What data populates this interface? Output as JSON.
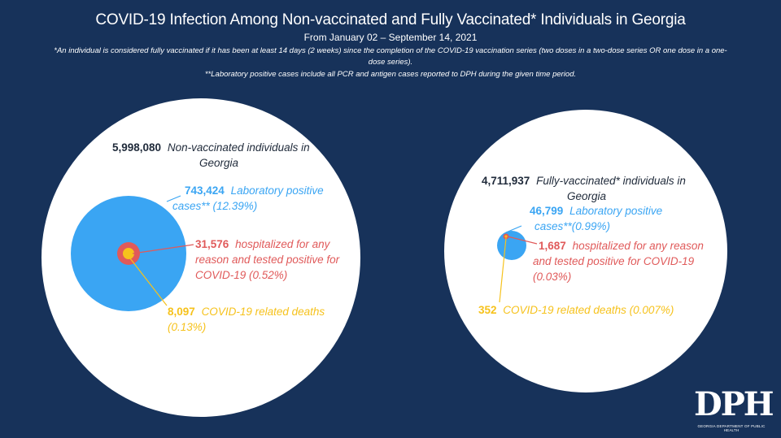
{
  "header": {
    "title": "COVID-19 Infection Among Non-vaccinated and Fully Vaccinated* Individuals in Georgia",
    "subtitle": "From January 02 – September 14, 2021",
    "note_vaccinated": "*An individual is considered fully vaccinated if it has been at least 14 days (2 weeks) since the completion of the COVID-19 vaccination series (two doses in a two-dose series OR one dose in a one-dose series).",
    "note_lab": "**Laboratory positive cases include all PCR and antigen cases reported to DPH during the given time period."
  },
  "colors": {
    "background": "#17325a",
    "population": "#ffffff",
    "lab_positive": "#3aa5f3",
    "hospitalized": "#e05a5a",
    "deaths": "#f6c21c",
    "population_text": "#1f2a3a"
  },
  "chart_data": {
    "type": "nested-circles",
    "groups": [
      {
        "population": {
          "value": "5,998,080",
          "label": "Non-vaccinated individuals in Georgia",
          "line1": "Non-vaccinated individuals in",
          "line2": "Georgia"
        },
        "lab_positive": {
          "value": "743,424",
          "line1": "Laboratory positive",
          "line2": "cases** (12.39%)"
        },
        "hospitalized": {
          "value": "31,576",
          "line1": "hospitalized for any",
          "line2": "reason and tested positive for",
          "line3": "COVID-19 (0.52%)"
        },
        "deaths": {
          "value": "8,097",
          "line1": "COVID-19 related deaths",
          "line2": "(0.13%)"
        }
      },
      {
        "population": {
          "value": "4,711,937",
          "label": "Fully-vaccinated* individuals in Georgia",
          "line1": "Fully-vaccinated* individuals in",
          "line2": "Georgia"
        },
        "lab_positive": {
          "value": "46,799",
          "line1": "Laboratory positive",
          "line2": "cases**(0.99%)"
        },
        "hospitalized": {
          "value": "1,687",
          "line1": "hospitalized for any reason",
          "line2": "and tested positive for COVID-19",
          "line3": "(0.03%)"
        },
        "deaths": {
          "value": "352",
          "line1": "COVID-19 related deaths (0.007%)"
        }
      }
    ]
  },
  "logo": {
    "mark": "DPH",
    "text": "GEORGIA DEPARTMENT OF PUBLIC HEALTH"
  }
}
